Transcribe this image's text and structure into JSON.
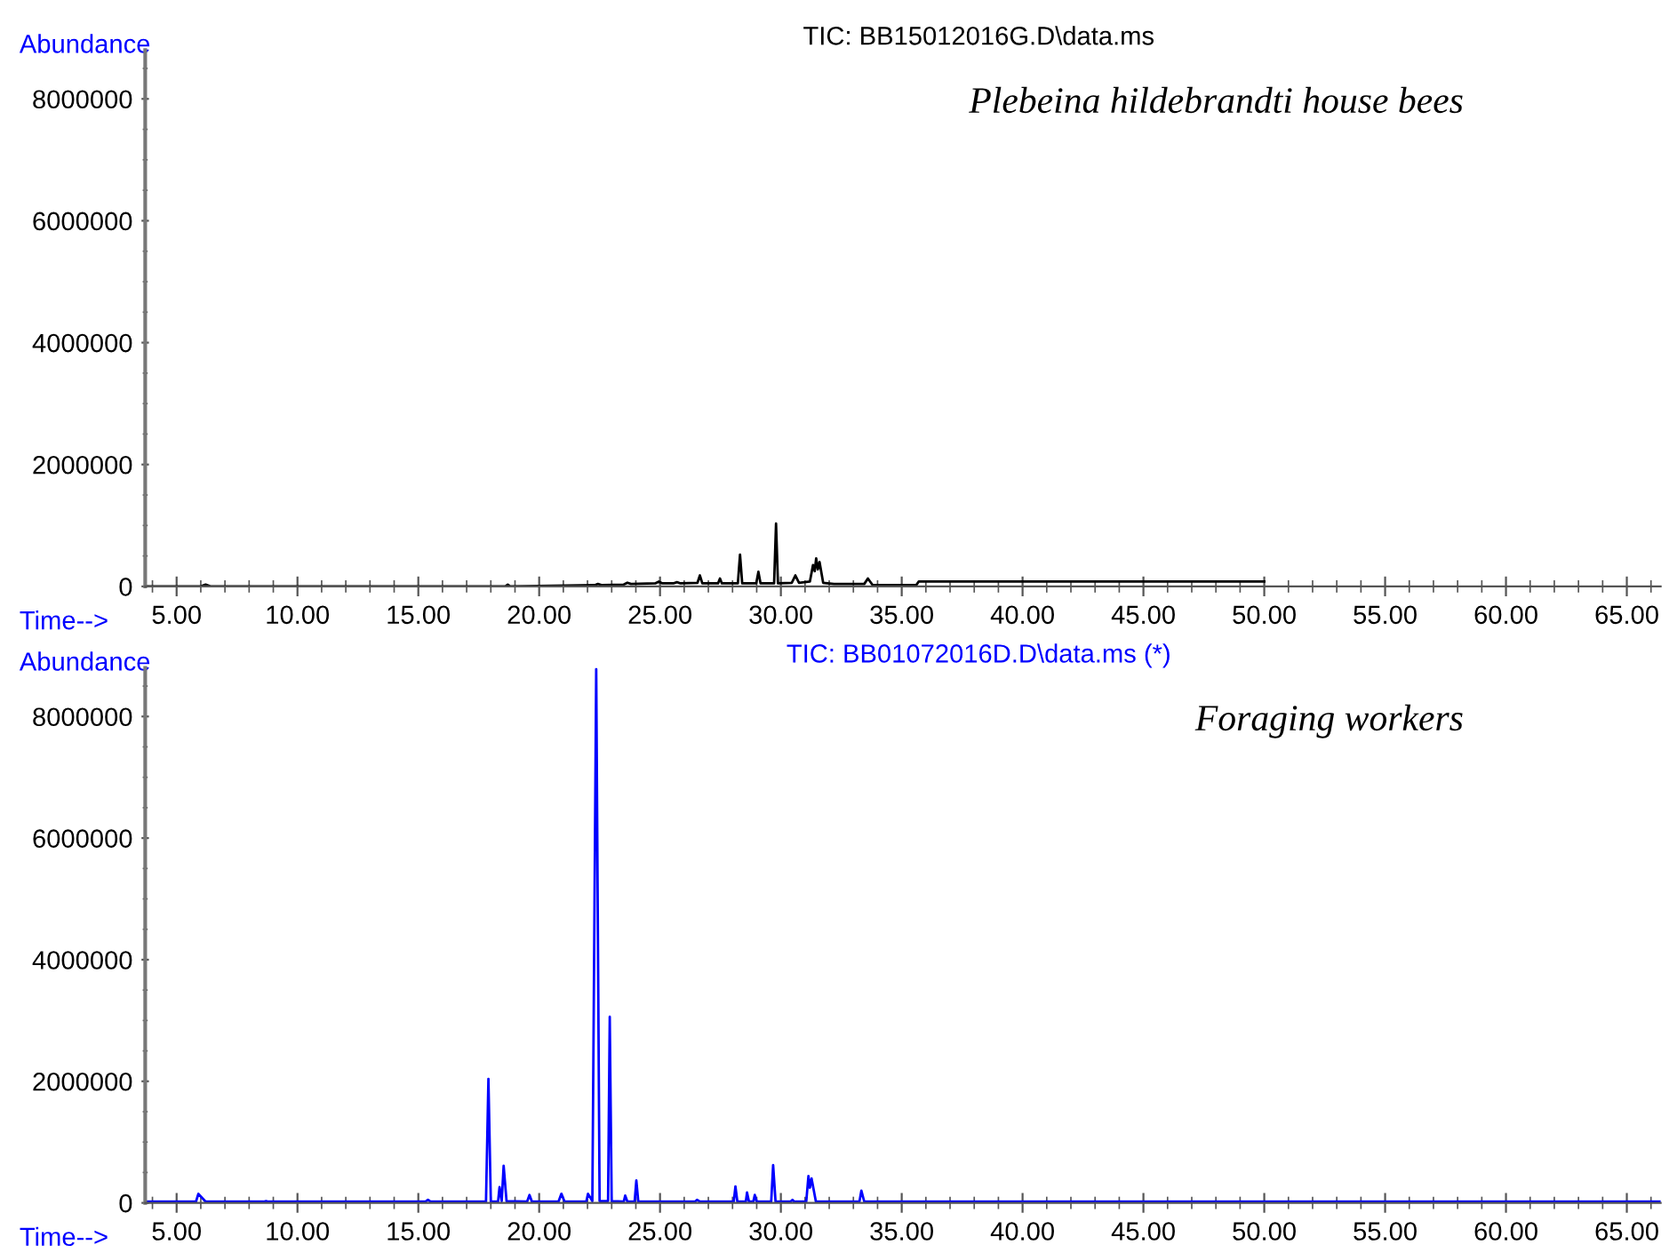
{
  "chart_data": [
    {
      "type": "line",
      "title": "TIC: BB15012016G.D\\data.ms",
      "xlabel": "Time-->",
      "ylabel": "Abundance",
      "annotations": [
        "Plebeina hildebrandti house bees"
      ],
      "xlim": [
        3.7,
        66.4
      ],
      "ylim": [
        0,
        8800000
      ],
      "xticks": [
        {
          "value": 5,
          "label": "5.00"
        },
        {
          "value": 10,
          "label": "10.00"
        },
        {
          "value": 15,
          "label": "15.00"
        },
        {
          "value": 20,
          "label": "20.00"
        },
        {
          "value": 25,
          "label": "25.00"
        },
        {
          "value": 30,
          "label": "30.00"
        },
        {
          "value": 35,
          "label": "35.00"
        },
        {
          "value": 40,
          "label": "40.00"
        },
        {
          "value": 45,
          "label": "45.00"
        },
        {
          "value": 50,
          "label": "50.00"
        },
        {
          "value": 55,
          "label": "55.00"
        },
        {
          "value": 60,
          "label": "60.00"
        },
        {
          "value": 65,
          "label": "65.00"
        }
      ],
      "yticks": [
        0,
        2000000,
        4000000,
        6000000,
        8000000
      ],
      "grid": false,
      "legend": false,
      "marker": "none",
      "line_style": "solid",
      "series": [
        {
          "color": "#000000",
          "x": [
            3.8,
            6.0,
            6.2,
            6.4,
            18.6,
            18.7,
            18.8,
            22.3,
            22.43,
            22.6,
            23.5,
            23.65,
            23.8,
            24.8,
            24.95,
            25.1,
            25.55,
            25.7,
            25.85,
            26.55,
            26.65,
            26.75,
            27.4,
            27.48,
            27.56,
            28.22,
            28.31,
            28.4,
            28.98,
            29.07,
            29.16,
            29.72,
            29.8,
            29.88,
            30.45,
            30.6,
            30.75,
            31.2,
            31.33,
            31.4,
            31.46,
            31.53,
            31.6,
            31.75,
            32.2,
            33.45,
            33.6,
            33.8,
            35.6,
            35.7,
            50.0
          ],
          "values": [
            0,
            0,
            30000,
            0,
            0,
            30000,
            0,
            20000,
            40000,
            20000,
            30000,
            60000,
            40000,
            50000,
            80000,
            50000,
            50000,
            70000,
            50000,
            60000,
            180000,
            50000,
            50000,
            130000,
            50000,
            50000,
            520000,
            50000,
            50000,
            240000,
            50000,
            50000,
            1030000,
            50000,
            60000,
            180000,
            60000,
            80000,
            350000,
            250000,
            460000,
            280000,
            400000,
            60000,
            40000,
            40000,
            130000,
            20000,
            20000,
            80000,
            80000
          ]
        }
      ]
    },
    {
      "type": "line",
      "title": "TIC: BB01072016D.D\\data.ms (*)",
      "xlabel": "Time-->",
      "ylabel": "Abundance",
      "annotations": [
        "Foraging workers"
      ],
      "xlim": [
        3.7,
        66.4
      ],
      "ylim": [
        0,
        8800000
      ],
      "xticks": [
        {
          "value": 5,
          "label": "5.00"
        },
        {
          "value": 10,
          "label": "10.00"
        },
        {
          "value": 15,
          "label": "15.00"
        },
        {
          "value": 20,
          "label": "20.00"
        },
        {
          "value": 25,
          "label": "25.00"
        },
        {
          "value": 30,
          "label": "30.00"
        },
        {
          "value": 35,
          "label": "35.00"
        },
        {
          "value": 40,
          "label": "40.00"
        },
        {
          "value": 45,
          "label": "45.00"
        },
        {
          "value": 50,
          "label": "50.00"
        },
        {
          "value": 55,
          "label": "55.00"
        },
        {
          "value": 60,
          "label": "60.00"
        },
        {
          "value": 65,
          "label": "65.00"
        }
      ],
      "yticks": [
        0,
        2000000,
        4000000,
        6000000,
        8000000
      ],
      "grid": false,
      "legend": false,
      "marker": "none",
      "line_style": "solid",
      "series": [
        {
          "color": "#0000ff",
          "x": [
            3.8,
            5.8,
            5.9,
            6.2,
            8.6,
            8.7,
            8.8,
            15.3,
            15.4,
            15.5,
            17.8,
            17.9,
            18.0,
            18.3,
            18.36,
            18.45,
            18.53,
            18.65,
            19.5,
            19.6,
            19.7,
            20.8,
            20.92,
            21.05,
            21.95,
            22.02,
            22.2,
            22.36,
            22.5,
            22.85,
            22.92,
            23.0,
            23.5,
            23.56,
            23.65,
            23.95,
            24.02,
            24.1,
            26.45,
            26.53,
            26.65,
            28.05,
            28.12,
            28.2,
            28.55,
            28.6,
            28.68,
            28.86,
            28.92,
            29.0,
            29.6,
            29.68,
            29.78,
            30.4,
            30.48,
            30.55,
            31.05,
            31.14,
            31.2,
            31.27,
            31.45,
            33.25,
            33.33,
            33.45,
            66.4
          ],
          "values": [
            20000,
            20000,
            150000,
            20000,
            20000,
            30000,
            20000,
            20000,
            50000,
            20000,
            20000,
            2040000,
            20000,
            20000,
            260000,
            30000,
            610000,
            30000,
            20000,
            130000,
            20000,
            20000,
            150000,
            20000,
            20000,
            150000,
            30000,
            8780000,
            30000,
            30000,
            3060000,
            30000,
            20000,
            120000,
            20000,
            20000,
            370000,
            20000,
            20000,
            50000,
            20000,
            20000,
            270000,
            20000,
            20000,
            170000,
            20000,
            20000,
            130000,
            20000,
            20000,
            620000,
            20000,
            20000,
            50000,
            20000,
            20000,
            440000,
            250000,
            400000,
            20000,
            20000,
            200000,
            20000,
            20000
          ]
        }
      ]
    }
  ]
}
